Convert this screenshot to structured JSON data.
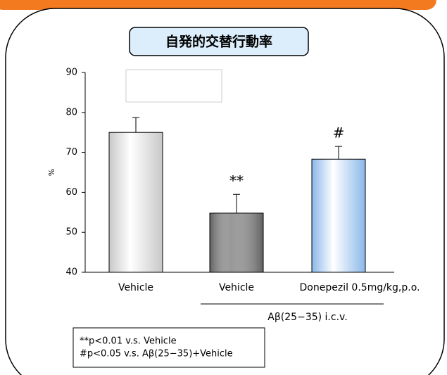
{
  "chart_data": {
    "type": "bar",
    "title": "自発的交替行動率",
    "ylabel": "%",
    "categories": [
      "Vehicle",
      "Vehicle",
      "Donepezil 0.5mg/kg,p.o."
    ],
    "values": [
      75,
      54.8,
      68.3
    ],
    "errors": [
      3.7,
      4.7,
      3.2
    ],
    "colors": [
      "#c8c8c8",
      "#606060",
      "#8ab8ea"
    ],
    "bar_labels": [
      null,
      "**",
      "#"
    ],
    "group_label": "Aβ(25−35) i.c.v.",
    "ylim": [
      40,
      90
    ],
    "yticks": [
      40,
      50,
      60,
      70,
      80,
      90
    ],
    "notes": [
      "**p<0.01 v.s. Vehicle",
      "#p<0.05 v.s. Aβ(25−35)+Vehicle"
    ]
  }
}
